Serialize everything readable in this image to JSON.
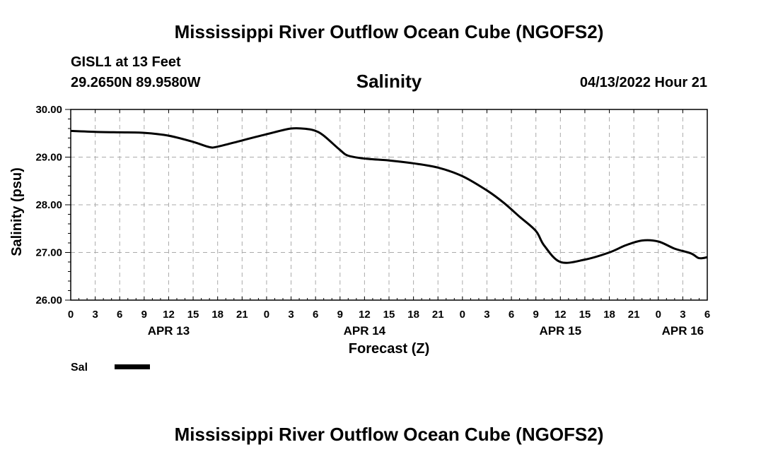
{
  "header": {
    "title": "Mississippi River Outflow Ocean Cube (NGOFS2)",
    "station": "GISL1 at 13 Feet",
    "coords": "29.2650N  89.9580W",
    "datetime": "04/13/2022 Hour 21"
  },
  "footer": {
    "title": "Mississippi River Outflow Ocean Cube (NGOFS2)"
  },
  "chart_data": {
    "type": "line",
    "title": "Salinity",
    "xlabel": "Forecast (Z)",
    "ylabel": "Salinity (psu)",
    "xlim": [
      0,
      78
    ],
    "ylim": [
      26.0,
      30.0
    ],
    "grid": true,
    "yticks": [
      "26.00",
      "27.00",
      "28.00",
      "29.00",
      "30.00"
    ],
    "xtick_labels": [
      "0",
      "3",
      "6",
      "9",
      "12",
      "15",
      "18",
      "21",
      "0",
      "3",
      "6",
      "9",
      "12",
      "15",
      "18",
      "21",
      "0",
      "3",
      "6",
      "9",
      "12",
      "15",
      "18",
      "21",
      "0",
      "3",
      "6"
    ],
    "day_labels": [
      {
        "label": "APR 13",
        "hour": 12
      },
      {
        "label": "APR 14",
        "hour": 36
      },
      {
        "label": "APR 15",
        "hour": 60
      },
      {
        "label": "APR 16",
        "hour": 75
      }
    ],
    "legend": [
      {
        "name": "Sal"
      }
    ],
    "series": [
      {
        "name": "Sal",
        "x": [
          0,
          3,
          6,
          9,
          12,
          15,
          17,
          18,
          21,
          24,
          27,
          29,
          30,
          31,
          33,
          34,
          36,
          39,
          42,
          45,
          48,
          51,
          53,
          55,
          57,
          58,
          60,
          63,
          66,
          68,
          70,
          72,
          74,
          76,
          77,
          78
        ],
        "y": [
          29.55,
          29.53,
          29.52,
          29.51,
          29.45,
          29.32,
          29.21,
          29.22,
          29.35,
          29.48,
          29.6,
          29.59,
          29.55,
          29.45,
          29.15,
          29.03,
          28.97,
          28.93,
          28.87,
          28.78,
          28.6,
          28.3,
          28.05,
          27.75,
          27.45,
          27.15,
          26.8,
          26.85,
          27.0,
          27.15,
          27.25,
          27.23,
          27.08,
          26.98,
          26.88,
          26.9
        ]
      }
    ]
  }
}
